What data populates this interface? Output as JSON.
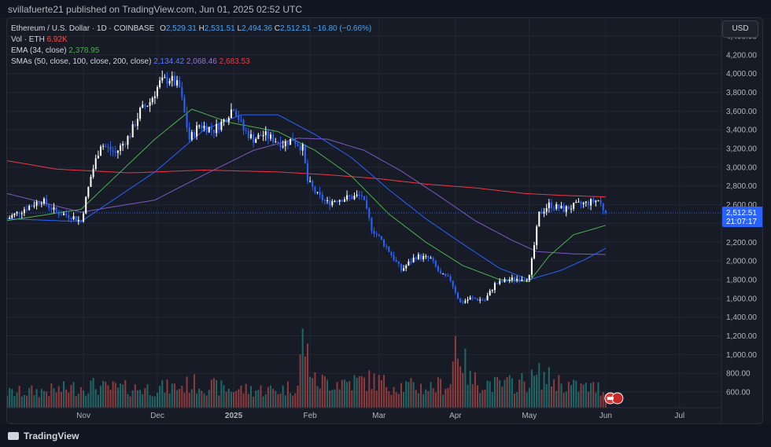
{
  "header": {
    "published": "svillafuerte21 published on TradingView.com, Jun 01, 2025 02:52 UTC"
  },
  "footer": {
    "brand": "TradingView"
  },
  "legend": {
    "symbol": "Ethereum / U.S. Dollar · 1D · COINBASE",
    "o_label": "O",
    "o": "2,529.31",
    "h_label": "H",
    "h": "2,531.51",
    "l_label": "L",
    "l": "2,494.36",
    "c_label": "C",
    "c": "2,512.51",
    "change": "−16.80 (−0.66%)",
    "vol_label": "Vol · ETH",
    "vol": "6.92K",
    "ema_label": "EMA (34, close)",
    "ema": "2,378.95",
    "sma_label": "SMAs (50, close, 100, close, 200, close)",
    "sma50": "2,134.42",
    "sma100": "2,068.46",
    "sma200": "2,683.53"
  },
  "price_axis": {
    "currency": "USD",
    "current_price": "2,512.51",
    "countdown": "21:07:17"
  },
  "colors": {
    "up": "#26a69a",
    "down": "#ef5350",
    "candle_up": "#ffffff",
    "candle_down": "#2962ff",
    "ema": "#4caf50",
    "sma50": "#2962ff",
    "sma100": "#7e57c2",
    "sma200": "#f23645"
  },
  "chart_data": {
    "type": "candlestick",
    "yticks": [
      600,
      800,
      1000,
      1200,
      1400,
      1600,
      1800,
      2000,
      2200,
      2400,
      2600,
      2800,
      3000,
      3200,
      3400,
      3600,
      3800,
      4000,
      4200,
      4400
    ],
    "ytick_labels": [
      "600.00",
      "800.00",
      "1,000.00",
      "1,200.00",
      "1,400.00",
      "1,600.00",
      "1,800.00",
      "2,000.00",
      "2,200.00",
      "2,400.00",
      "2,600.00",
      "2,800.00",
      "3,000.00",
      "3,200.00",
      "3,400.00",
      "3,600.00",
      "3,800.00",
      "4,000.00",
      "4,200.00",
      "4,400.00"
    ],
    "x_labels": [
      {
        "day": 31,
        "text": "Nov"
      },
      {
        "day": 61,
        "text": "Dec"
      },
      {
        "day": 92,
        "text": "2025"
      },
      {
        "day": 123,
        "text": "Feb"
      },
      {
        "day": 151,
        "text": "Mar"
      },
      {
        "day": 182,
        "text": "Apr"
      },
      {
        "day": 212,
        "text": "May"
      },
      {
        "day": 243,
        "text": "Jun"
      },
      {
        "day": 273,
        "text": "Jul"
      }
    ],
    "x_range_days": [
      0,
      290
    ],
    "last_day": 243,
    "price_keys": [
      [
        0,
        2450
      ],
      [
        8,
        2570
      ],
      [
        14,
        2650
      ],
      [
        20,
        2520
      ],
      [
        26,
        2480
      ],
      [
        30,
        2420
      ],
      [
        34,
        2900
      ],
      [
        38,
        3250
      ],
      [
        44,
        3150
      ],
      [
        50,
        3350
      ],
      [
        54,
        3600
      ],
      [
        58,
        3700
      ],
      [
        62,
        3900
      ],
      [
        66,
        3950
      ],
      [
        70,
        3850
      ],
      [
        74,
        3300
      ],
      [
        78,
        3450
      ],
      [
        84,
        3400
      ],
      [
        88,
        3500
      ],
      [
        92,
        3650
      ],
      [
        96,
        3400
      ],
      [
        100,
        3300
      ],
      [
        104,
        3350
      ],
      [
        108,
        3300
      ],
      [
        112,
        3250
      ],
      [
        116,
        3300
      ],
      [
        120,
        3200
      ],
      [
        122,
        2850
      ],
      [
        126,
        2700
      ],
      [
        130,
        2620
      ],
      [
        134,
        2660
      ],
      [
        140,
        2680
      ],
      [
        144,
        2700
      ],
      [
        148,
        2350
      ],
      [
        154,
        2150
      ],
      [
        160,
        1900
      ],
      [
        166,
        2050
      ],
      [
        172,
        2020
      ],
      [
        176,
        1850
      ],
      [
        180,
        1800
      ],
      [
        184,
        1550
      ],
      [
        188,
        1600
      ],
      [
        194,
        1580
      ],
      [
        198,
        1750
      ],
      [
        204,
        1800
      ],
      [
        212,
        1830
      ],
      [
        216,
        2500
      ],
      [
        220,
        2600
      ],
      [
        226,
        2550
      ],
      [
        232,
        2600
      ],
      [
        236,
        2620
      ],
      [
        240,
        2650
      ],
      [
        243,
        2512.51
      ]
    ],
    "volume_keys": [
      [
        0,
        320
      ],
      [
        20,
        380
      ],
      [
        34,
        480
      ],
      [
        40,
        420
      ],
      [
        60,
        420
      ],
      [
        70,
        450
      ],
      [
        75,
        520
      ],
      [
        90,
        400
      ],
      [
        110,
        380
      ],
      [
        118,
        480
      ],
      [
        120,
        1500
      ],
      [
        125,
        560
      ],
      [
        140,
        560
      ],
      [
        148,
        600
      ],
      [
        155,
        500
      ],
      [
        170,
        430
      ],
      [
        180,
        520
      ],
      [
        182,
        1500
      ],
      [
        188,
        600
      ],
      [
        200,
        480
      ],
      [
        205,
        520
      ],
      [
        212,
        580
      ],
      [
        216,
        700
      ],
      [
        230,
        450
      ],
      [
        243,
        420
      ]
    ],
    "ema_keys": [
      [
        0,
        2430
      ],
      [
        30,
        2550
      ],
      [
        60,
        3300
      ],
      [
        75,
        3620
      ],
      [
        90,
        3480
      ],
      [
        110,
        3380
      ],
      [
        125,
        3180
      ],
      [
        140,
        2900
      ],
      [
        155,
        2500
      ],
      [
        170,
        2200
      ],
      [
        185,
        1950
      ],
      [
        200,
        1800
      ],
      [
        212,
        1780
      ],
      [
        220,
        2050
      ],
      [
        230,
        2280
      ],
      [
        243,
        2378.95
      ]
    ],
    "sma50_keys": [
      [
        0,
        2450
      ],
      [
        30,
        2420
      ],
      [
        60,
        2950
      ],
      [
        80,
        3400
      ],
      [
        95,
        3560
      ],
      [
        110,
        3560
      ],
      [
        125,
        3350
      ],
      [
        140,
        3100
      ],
      [
        155,
        2760
      ],
      [
        170,
        2450
      ],
      [
        185,
        2180
      ],
      [
        200,
        1920
      ],
      [
        212,
        1800
      ],
      [
        225,
        1900
      ],
      [
        235,
        2020
      ],
      [
        243,
        2134.42
      ]
    ],
    "sma100_keys": [
      [
        0,
        2720
      ],
      [
        30,
        2520
      ],
      [
        60,
        2650
      ],
      [
        80,
        2920
      ],
      [
        100,
        3180
      ],
      [
        118,
        3310
      ],
      [
        130,
        3300
      ],
      [
        145,
        3180
      ],
      [
        160,
        2960
      ],
      [
        175,
        2700
      ],
      [
        190,
        2430
      ],
      [
        205,
        2220
      ],
      [
        215,
        2100
      ],
      [
        230,
        2075
      ],
      [
        243,
        2068.46
      ]
    ],
    "sma200_keys": [
      [
        0,
        3070
      ],
      [
        20,
        2980
      ],
      [
        50,
        2940
      ],
      [
        80,
        2970
      ],
      [
        110,
        2950
      ],
      [
        130,
        2920
      ],
      [
        150,
        2880
      ],
      [
        170,
        2820
      ],
      [
        190,
        2780
      ],
      [
        210,
        2720
      ],
      [
        225,
        2700
      ],
      [
        243,
        2683.53
      ]
    ]
  }
}
